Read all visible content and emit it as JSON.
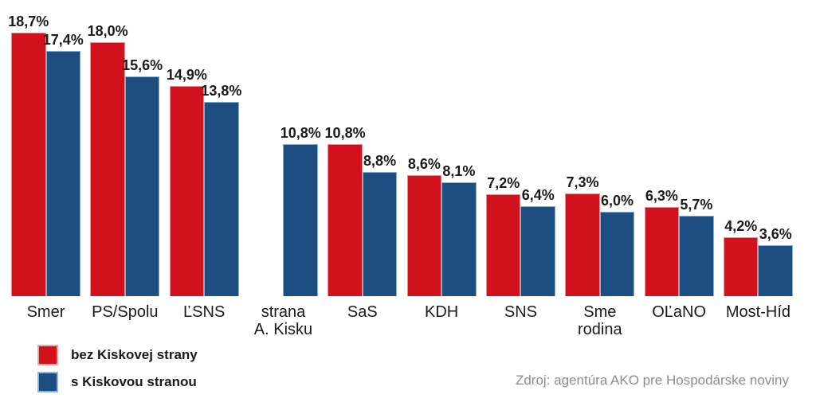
{
  "chart_data": {
    "type": "bar",
    "title": "",
    "xlabel": "",
    "ylabel": "",
    "ylim": [
      0,
      21
    ],
    "grid": false,
    "legend_position": "bottom-left",
    "categories": [
      "Smer",
      "PS/Spolu",
      "ĽSNS",
      "strana\nA. Kisku",
      "SaS",
      "KDH",
      "SNS",
      "Sme\nrodina",
      "OĽaNO",
      "Most-Híd"
    ],
    "series": [
      {
        "name": "bez Kiskovej strany",
        "color": "#d1111c",
        "values": [
          18.7,
          18.0,
          14.9,
          null,
          10.8,
          8.6,
          7.2,
          7.3,
          6.3,
          4.2
        ],
        "labels": [
          "18,7%",
          "18,0%",
          "14,9%",
          null,
          "10,8%",
          "8,6%",
          "7,2%",
          "7,3%",
          "6,3%",
          "4,2%"
        ]
      },
      {
        "name": "s Kiskovou stranou",
        "color": "#1c4e82",
        "values": [
          17.4,
          15.6,
          13.8,
          10.8,
          8.8,
          8.1,
          6.4,
          6.0,
          5.7,
          3.6
        ],
        "labels": [
          "17,4%",
          "15,6%",
          "13,8%",
          "10,8%",
          "8,8%",
          "8,1%",
          "6,4%",
          "6,0%",
          "5,7%",
          "3,6%"
        ]
      }
    ]
  },
  "legend": {
    "items": [
      {
        "label": "bez Kiskovej strany",
        "color": "#d1111c"
      },
      {
        "label": "s Kiskovou stranou",
        "color": "#1c4e82"
      }
    ]
  },
  "source": "Zdroj: agentúra AKO pre Hospodárske noviny"
}
